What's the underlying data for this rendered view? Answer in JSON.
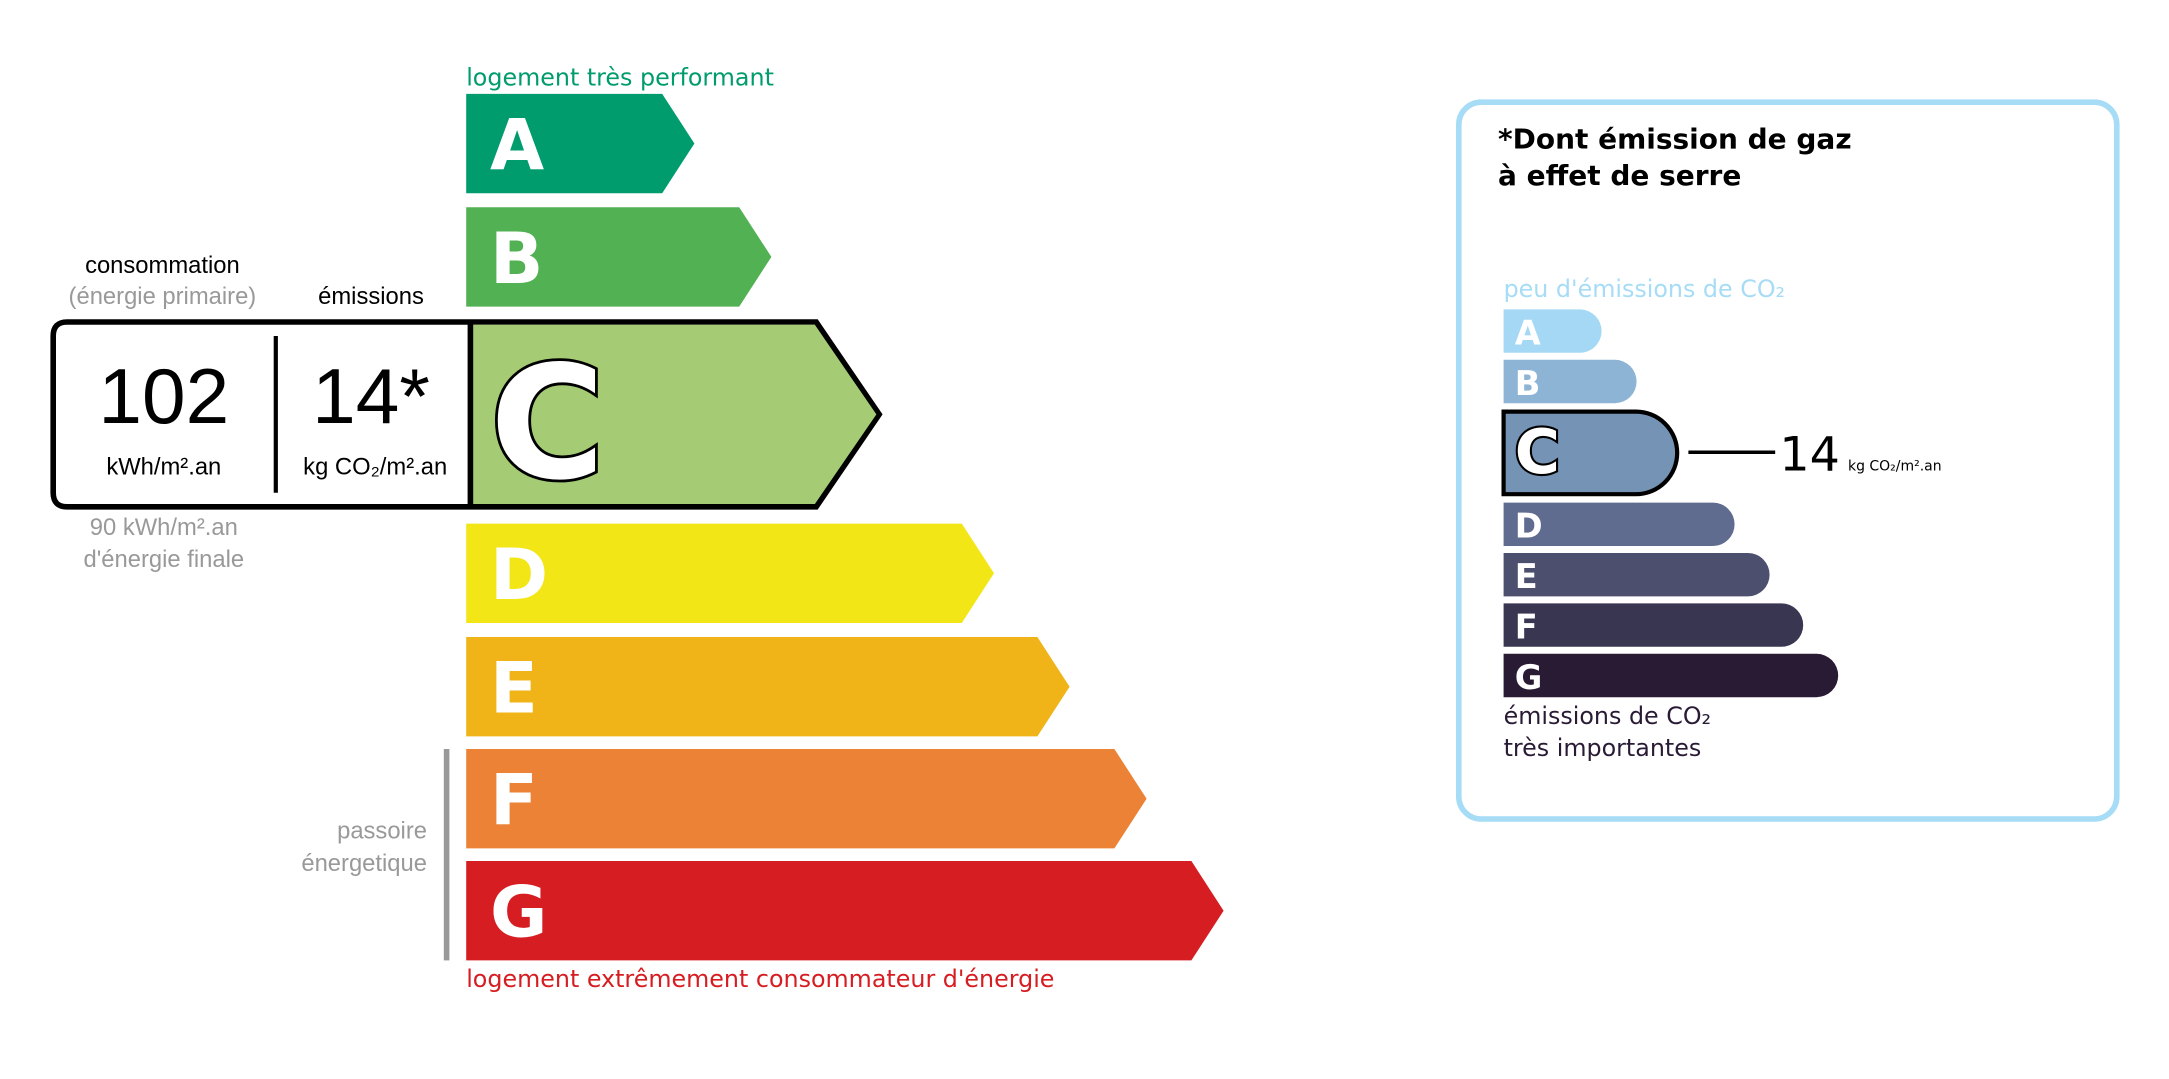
{
  "energy_label": {
    "top_caption": "logement très performant",
    "bottom_caption": "logement extrêmement consommateur d'énergie",
    "classes": [
      {
        "letter": "A",
        "color": "#009c6d"
      },
      {
        "letter": "B",
        "color": "#52b153"
      },
      {
        "letter": "C",
        "color": "#a5cc74"
      },
      {
        "letter": "D",
        "color": "#f2e617"
      },
      {
        "letter": "E",
        "color": "#f0b418"
      },
      {
        "letter": "F",
        "color": "#eb8235"
      },
      {
        "letter": "G",
        "color": "#d61d21"
      }
    ],
    "current_class": "C",
    "consumption_heading": "consommation",
    "consumption_subheading": "(énergie primaire)",
    "emissions_heading": "émissions",
    "consumption_value": "102",
    "consumption_unit": "kWh/m².an",
    "emissions_value": "14*",
    "emissions_unit": "kg CO₂/m².an",
    "final_energy_value": "90 kWh/m².an",
    "final_energy_label": "d'énergie finale",
    "passoire_line1": "passoire",
    "passoire_line2": "énergetique",
    "colors": {
      "top_caption": "#009c6d",
      "bottom_caption": "#d61d21",
      "muted": "#999999"
    }
  },
  "ghg_label": {
    "title_line1": "*Dont émission de gaz",
    "title_line2": "à effet de serre",
    "top_caption": "peu d'émissions de CO₂",
    "bottom_caption_line1": "émissions de CO₂",
    "bottom_caption_line2": "très importantes",
    "classes": [
      {
        "letter": "A",
        "color": "#a4d8f5"
      },
      {
        "letter": "B",
        "color": "#8db4d4"
      },
      {
        "letter": "C",
        "color": "#7594b5"
      },
      {
        "letter": "D",
        "color": "#5f6c8f"
      },
      {
        "letter": "E",
        "color": "#4c4f6e"
      },
      {
        "letter": "F",
        "color": "#393652"
      },
      {
        "letter": "G",
        "color": "#2a1b35"
      }
    ],
    "current_class": "C",
    "value": "14",
    "unit": "kg CO₂/m².an",
    "colors": {
      "border": "#a6dcf5",
      "top_caption": "#a6dcf5",
      "bottom_caption": "#2a1b35"
    }
  }
}
